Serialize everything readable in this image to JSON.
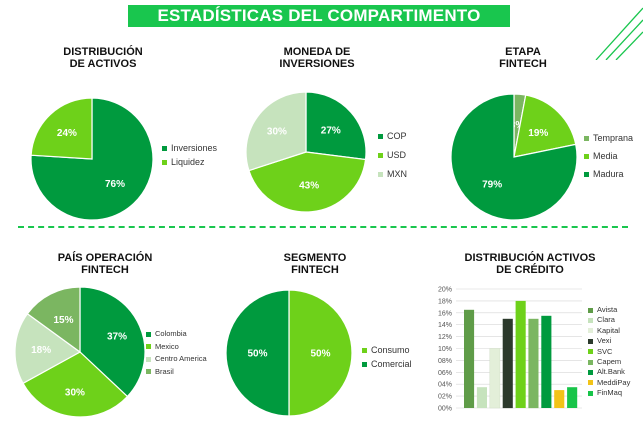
{
  "page_title": "ESTADÍSTICAS DEL COMPARTIMENTO",
  "colors": {
    "dark_green": "#009a3e",
    "bright_green": "#18c449",
    "lime": "#6ed11a",
    "light_green": "#c6e3bd",
    "mid_green": "#7bb661",
    "olive": "#5f9c48",
    "pale": "#e3efd9",
    "charcoal": "#2c3a2c",
    "yellow": "#f2c318",
    "title_green": "#19c64e"
  },
  "charts": {
    "activos": {
      "title_line1": "DISTRIBUCIÓN",
      "title_line2": "DE ACTIVOS"
    },
    "moneda": {
      "title_line1": "MONEDA DE",
      "title_line2": "INVERSIONES"
    },
    "etapa": {
      "title_line1": "ETAPA",
      "title_line2": "FINTECH"
    },
    "pais": {
      "title_line1": "PAÍS OPERACIÓN",
      "title_line2": "FINTECH"
    },
    "segmento": {
      "title_line1": "SEGMENTO",
      "title_line2": "FINTECH"
    },
    "credito": {
      "title_line1": "DISTRIBUCIÓN ACTIVOS",
      "title_line2": "DE CRÉDITO"
    }
  },
  "chart_data": [
    {
      "type": "pie",
      "title": "DISTRIBUCIÓN DE ACTIVOS",
      "labels": [
        "Inversiones",
        "Liquidez"
      ],
      "values": [
        76,
        24
      ],
      "value_labels": [
        "76%",
        "24%"
      ],
      "colors": [
        "#009a3e",
        "#6ed11a"
      ],
      "legend": "right"
    },
    {
      "type": "pie",
      "title": "MONEDA DE INVERSIONES",
      "labels": [
        "COP",
        "USD",
        "MXN"
      ],
      "values": [
        27,
        43,
        30
      ],
      "value_labels": [
        "27%",
        "43%",
        "30%"
      ],
      "colors": [
        "#009a3e",
        "#6ed11a",
        "#c6e3bd"
      ],
      "legend": "right"
    },
    {
      "type": "pie",
      "title": "ETAPA FINTECH",
      "labels": [
        "Temprana",
        "Media",
        "Madura"
      ],
      "values": [
        3,
        19,
        79
      ],
      "value_labels": [
        "3%",
        "19%",
        "79%"
      ],
      "colors": [
        "#7bb661",
        "#6ed11a",
        "#009a3e"
      ],
      "legend": "right"
    },
    {
      "type": "pie",
      "title": "PAÍS OPERACIÓN FINTECH",
      "labels": [
        "Colombia",
        "Mexico",
        "Centro America",
        "Brasil"
      ],
      "values": [
        37,
        30,
        18,
        15
      ],
      "value_labels": [
        "37%",
        "30%",
        "18%",
        "15%"
      ],
      "colors": [
        "#009a3e",
        "#6ed11a",
        "#c6e3bd",
        "#7bb661"
      ],
      "legend": "right"
    },
    {
      "type": "pie",
      "title": "SEGMENTO FINTECH",
      "labels": [
        "Consumo",
        "Comercial"
      ],
      "values": [
        50,
        50
      ],
      "value_labels": [
        "50%",
        "50%"
      ],
      "colors": [
        "#6ed11a",
        "#009a3e"
      ],
      "legend": "right"
    },
    {
      "type": "bar",
      "title": "DISTRIBUCIÓN ACTIVOS DE CRÉDITO",
      "series": [
        {
          "name": "Avista",
          "value": 16.5,
          "color": "#5f9c48"
        },
        {
          "name": "Clara",
          "value": 3.5,
          "color": "#c6e3bd"
        },
        {
          "name": "Kapital",
          "value": 10,
          "color": "#e3efd9"
        },
        {
          "name": "Vexi",
          "value": 15,
          "color": "#2c3a2c"
        },
        {
          "name": "SVC",
          "value": 18,
          "color": "#6ed11a"
        },
        {
          "name": "Capem",
          "value": 15,
          "color": "#7bb661"
        },
        {
          "name": "Alt.Bank",
          "value": 15.5,
          "color": "#009a3e"
        },
        {
          "name": "MeddiPay",
          "value": 3,
          "color": "#f2c318"
        },
        {
          "name": "FinMaq",
          "value": 3.5,
          "color": "#18c449"
        }
      ],
      "y_ticks": [
        "00%",
        "02%",
        "04%",
        "06%",
        "08%",
        "10%",
        "12%",
        "14%",
        "16%",
        "18%",
        "20%"
      ],
      "ylim": [
        0,
        20
      ],
      "grid": true,
      "legend": "right"
    }
  ]
}
